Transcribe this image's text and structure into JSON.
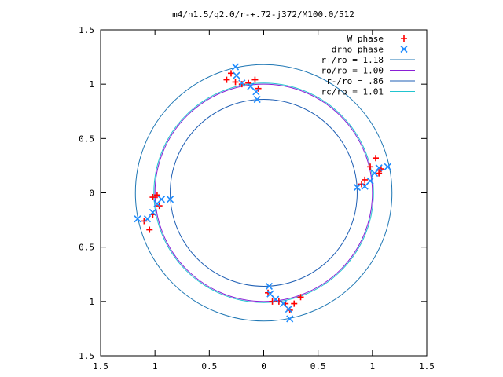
{
  "chart_data": {
    "type": "scatter",
    "title": "m4/n1.5/q2.0/r-+.72-j372/M100.0/512",
    "xlabel": "",
    "ylabel": "",
    "xlim": [
      -1.5,
      1.5
    ],
    "ylim": [
      -1.5,
      1.5
    ],
    "x_tick_labels": [
      "1.5",
      "1",
      "0.5",
      "0",
      "0.5",
      "1",
      "1.5"
    ],
    "y_tick_labels": [
      "1.5",
      "1",
      "0.5",
      "0",
      "0.5",
      "1",
      "1.5"
    ],
    "grid": false,
    "legend_position": "top-right",
    "series": [
      {
        "name": "W phase",
        "marker": "plus",
        "color": "#ff0000",
        "points": [
          [
            -0.34,
            1.04
          ],
          [
            -0.3,
            1.1
          ],
          [
            -0.26,
            1.02
          ],
          [
            -0.2,
            1.0
          ],
          [
            -0.14,
            1.01
          ],
          [
            -0.08,
            1.04
          ],
          [
            -0.05,
            0.96
          ],
          [
            1.03,
            0.32
          ],
          [
            0.98,
            0.24
          ],
          [
            0.93,
            0.12
          ],
          [
            0.9,
            0.08
          ],
          [
            1.08,
            0.22
          ],
          [
            1.06,
            0.18
          ],
          [
            -1.02,
            -0.04
          ],
          [
            -0.98,
            -0.02
          ],
          [
            -0.96,
            -0.12
          ],
          [
            -1.02,
            -0.2
          ],
          [
            -1.1,
            -0.26
          ],
          [
            -1.05,
            -0.34
          ],
          [
            0.04,
            -0.92
          ],
          [
            0.08,
            -1.0
          ],
          [
            0.14,
            -1.0
          ],
          [
            0.2,
            -1.02
          ],
          [
            0.28,
            -1.02
          ],
          [
            0.34,
            -0.96
          ],
          [
            0.24,
            -1.08
          ]
        ]
      },
      {
        "name": "drho phase",
        "marker": "x",
        "color": "#1e8cff",
        "points": [
          [
            -0.26,
            1.16
          ],
          [
            -0.25,
            1.08
          ],
          [
            -0.2,
            1.01
          ],
          [
            -0.12,
            0.98
          ],
          [
            -0.07,
            0.93
          ],
          [
            -0.06,
            0.86
          ],
          [
            0.86,
            0.05
          ],
          [
            0.93,
            0.06
          ],
          [
            0.98,
            0.11
          ],
          [
            1.02,
            0.18
          ],
          [
            1.06,
            0.23
          ],
          [
            1.14,
            0.24
          ],
          [
            -1.16,
            -0.24
          ],
          [
            -1.07,
            -0.24
          ],
          [
            -1.02,
            -0.18
          ],
          [
            -0.98,
            -0.1
          ],
          [
            -0.94,
            -0.06
          ],
          [
            -0.86,
            -0.06
          ],
          [
            0.05,
            -0.86
          ],
          [
            0.06,
            -0.93
          ],
          [
            0.11,
            -0.98
          ],
          [
            0.18,
            -1.02
          ],
          [
            0.23,
            -1.07
          ],
          [
            0.24,
            -1.16
          ]
        ]
      },
      {
        "name": "r+/ro = 1.18",
        "type": "circle",
        "radius": 1.18,
        "color": "#1f77b4"
      },
      {
        "name": "ro/ro = 1.00",
        "type": "circle",
        "radius": 1.0,
        "color": "#8a1fd6"
      },
      {
        "name": "r-/ro = .86",
        "type": "circle",
        "radius": 0.86,
        "color": "#1f5fb4"
      },
      {
        "name": "rc/ro = 1.01",
        "type": "circle",
        "radius": 1.01,
        "color": "#21c4cf"
      }
    ]
  }
}
